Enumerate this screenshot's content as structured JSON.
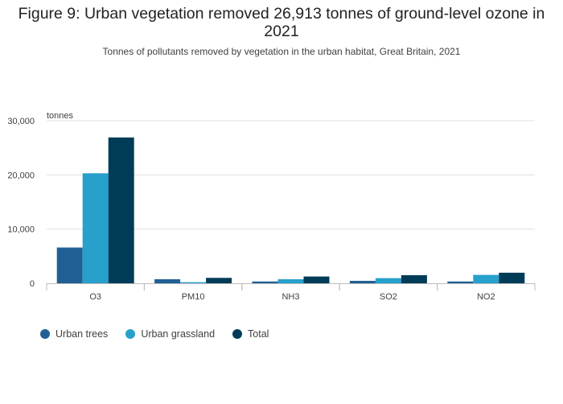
{
  "title": "Figure 9: Urban vegetation removed 26,913 tonnes of ground-level ozone in 2021",
  "subtitle": "Tonnes of pollutants removed by vegetation in the urban habitat, Great Britain, 2021",
  "chart_data": {
    "type": "bar",
    "title": "Figure 9: Urban vegetation removed 26,913 tonnes of ground-level ozone in 2021",
    "subtitle": "Tonnes of pollutants removed by vegetation in the urban habitat, Great Britain, 2021",
    "ylabel": "tonnes",
    "xlabel": "",
    "ylim": [
      0,
      30000
    ],
    "yticks": [
      0,
      10000,
      20000,
      30000
    ],
    "ytick_labels": [
      "0",
      "10,000",
      "20,000",
      "30,000"
    ],
    "grid": true,
    "legend_position": "bottom-left",
    "categories": [
      "O3",
      "PM10",
      "NH3",
      "SO2",
      "NO2"
    ],
    "series": [
      {
        "name": "Urban trees",
        "color": "#206095",
        "values": [
          6600,
          750,
          330,
          450,
          330
        ]
      },
      {
        "name": "Urban grassland",
        "color": "#27a0cc",
        "values": [
          20300,
          200,
          750,
          950,
          1550
        ]
      },
      {
        "name": "Total",
        "color": "#003c57",
        "values": [
          26913,
          1000,
          1250,
          1500,
          1950
        ]
      }
    ]
  }
}
